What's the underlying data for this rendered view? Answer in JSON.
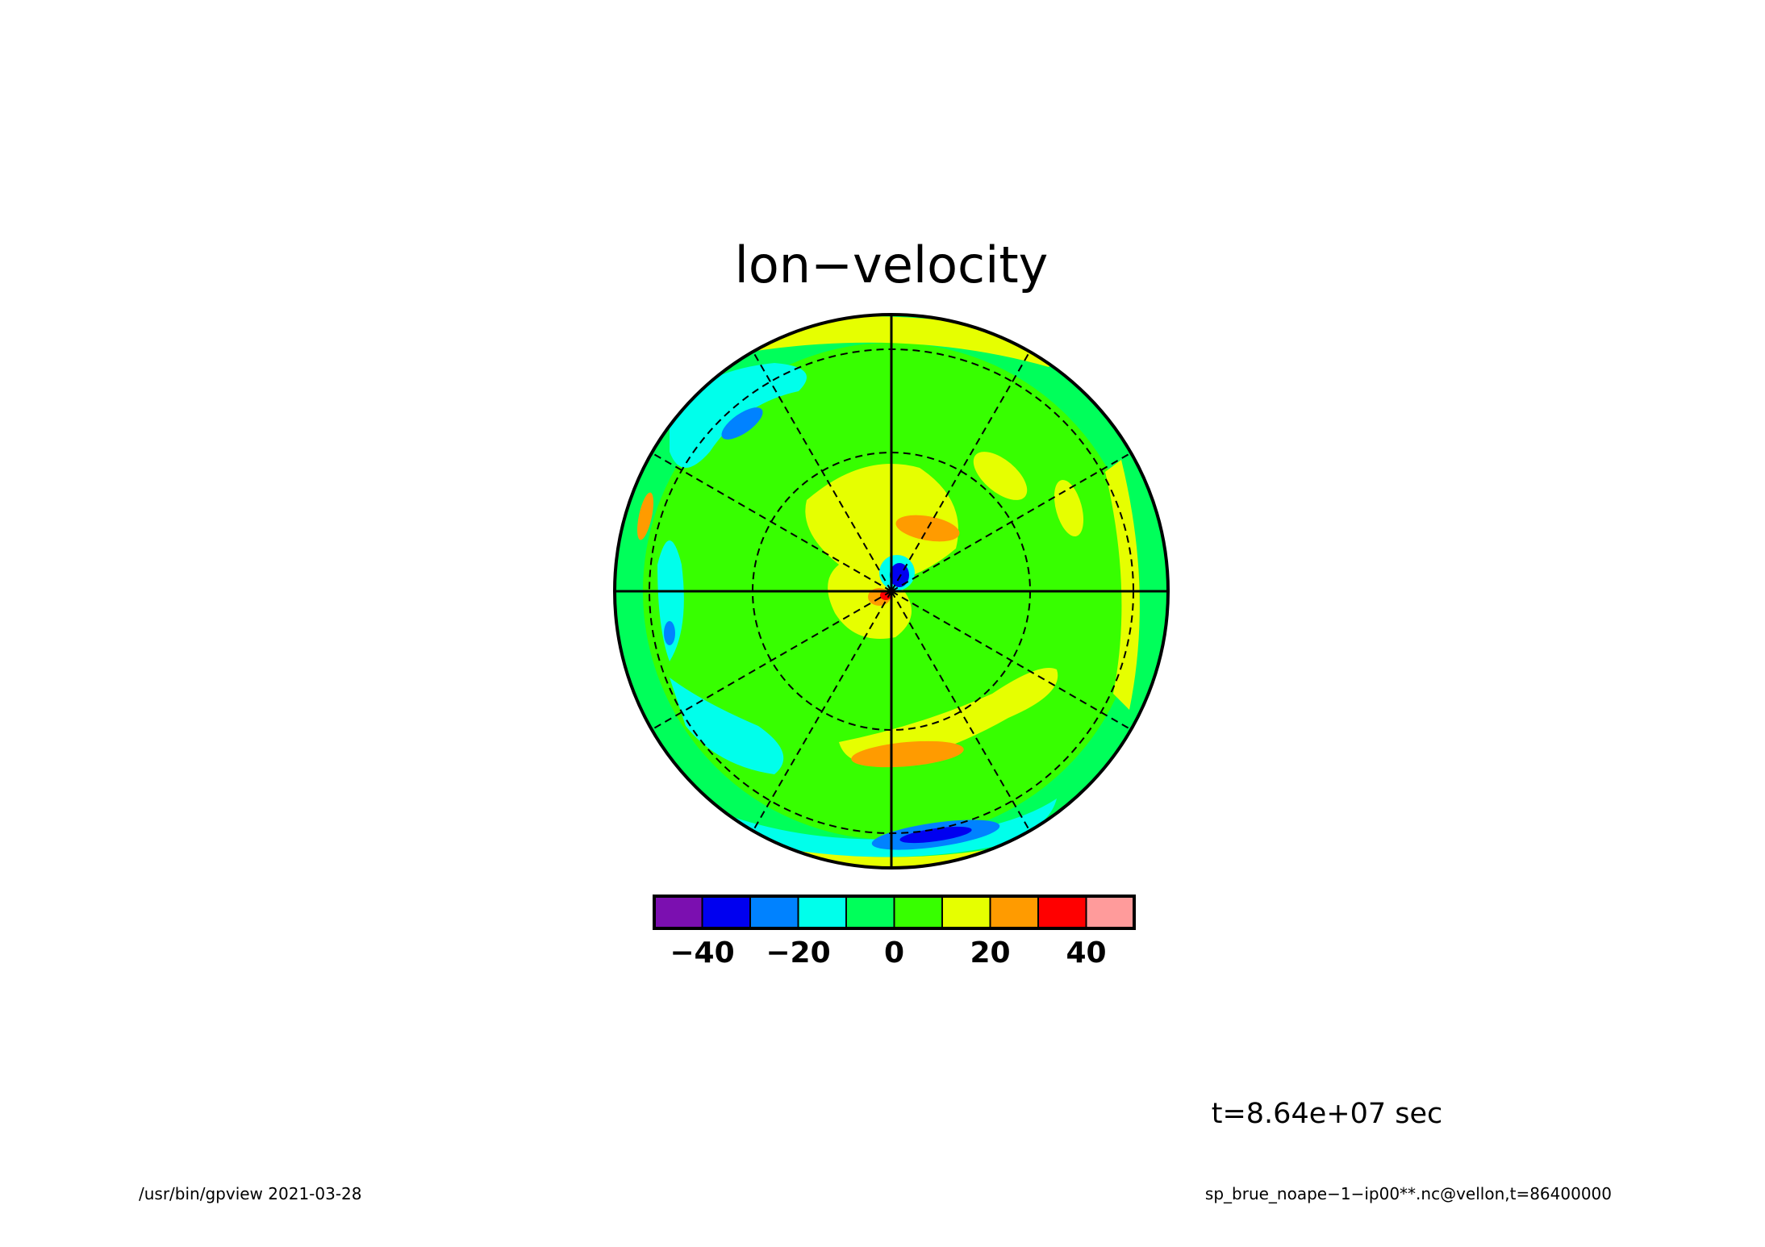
{
  "chart_data": {
    "type": "heatmap",
    "projection": "polar (orthographic, pole at center)",
    "title": "lon−velocity",
    "colorbar": {
      "colors": [
        "#7b0fb0",
        "#0000f0",
        "#0082ff",
        "#00ffeb",
        "#00ff5a",
        "#37ff00",
        "#e6ff00",
        "#ff9b00",
        "#ff0000",
        "#ff9b9b"
      ],
      "ticks": [
        -40,
        -20,
        0,
        20,
        40
      ],
      "tick_labels": [
        "−40",
        "−20",
        "0",
        "20",
        "40"
      ],
      "range": [
        -50,
        50
      ],
      "interval": 10
    },
    "grid": {
      "meridians_deg": [
        0,
        30,
        60,
        90,
        120,
        150,
        180,
        210,
        240,
        270,
        300,
        330
      ],
      "latitude_circles": 2,
      "axes_solid": true
    },
    "approximate_features": [
      {
        "region": "background",
        "value_range": [
          0,
          10
        ]
      },
      {
        "region": "inner ring around pole",
        "value_range": [
          10,
          20
        ]
      },
      {
        "region": "near pole, upper right",
        "value_range": [
          20,
          30
        ]
      },
      {
        "region": "pole, lower left",
        "value_range": [
          30,
          40
        ]
      },
      {
        "region": "pole, upper right",
        "value_range": [
          -40,
          -30
        ]
      },
      {
        "region": "lower band, south",
        "value_range": [
          20,
          30
        ]
      },
      {
        "region": "outer rim, bottom",
        "value_range": [
          -40,
          -30
        ]
      },
      {
        "region": "outer rim, left",
        "value_range": [
          -20,
          -10
        ]
      }
    ]
  },
  "annotations": {
    "time": "t=8.64e+07 sec",
    "footer_left": "/usr/bin/gpview  2021-03-28",
    "footer_right": "sp_brue_noape−1−ip00**.nc@vellon,t=86400000"
  }
}
